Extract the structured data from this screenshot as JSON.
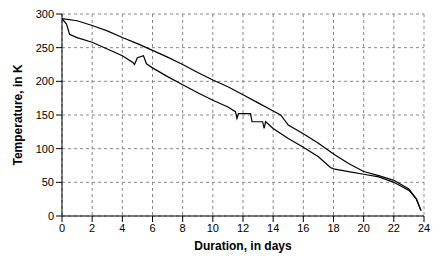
{
  "chart_data": {
    "type": "line",
    "x_label": "Duration, in days",
    "y_label": "Temperature, in K",
    "xlim": [
      0,
      24
    ],
    "xticks": [
      0,
      2,
      4,
      6,
      8,
      10,
      12,
      14,
      16,
      18,
      20,
      22,
      24
    ],
    "ylim": [
      0,
      300
    ],
    "yticks": [
      0,
      50,
      100,
      150,
      200,
      250,
      300
    ],
    "grid": true,
    "series": [
      {
        "color": "#000000",
        "x": [
          0,
          1,
          2,
          3,
          4,
          5,
          6,
          7,
          8,
          9,
          10,
          11,
          12,
          13,
          14,
          14.5,
          15,
          16,
          17,
          18,
          19,
          20,
          21,
          22,
          23,
          23.5,
          23.8
        ],
        "values": [
          293,
          290,
          283,
          275,
          265,
          256,
          246,
          236,
          225,
          213,
          202,
          192,
          180,
          168,
          156,
          150,
          135,
          122,
          108,
          92,
          78,
          66,
          60,
          53,
          40,
          25,
          8
        ]
      },
      {
        "color": "#000000",
        "x": [
          0,
          0.3,
          0.5,
          1,
          2,
          3,
          4,
          4.7,
          4.8,
          5,
          5.4,
          5.6,
          6,
          7,
          8,
          9,
          10,
          11,
          11.5,
          11.6,
          11.7,
          12.5,
          12.6,
          13.3,
          13.4,
          13.5,
          14,
          15,
          16,
          17,
          17.8,
          18,
          19,
          20,
          21,
          22,
          23,
          23.5,
          23.8
        ],
        "values": [
          293,
          285,
          270,
          265,
          258,
          248,
          238,
          228,
          225,
          235,
          238,
          226,
          220,
          207,
          195,
          183,
          172,
          162,
          155,
          145,
          152,
          152,
          140,
          140,
          130,
          140,
          130,
          115,
          102,
          88,
          72,
          70,
          66,
          62,
          58,
          50,
          38,
          25,
          8
        ]
      }
    ]
  }
}
